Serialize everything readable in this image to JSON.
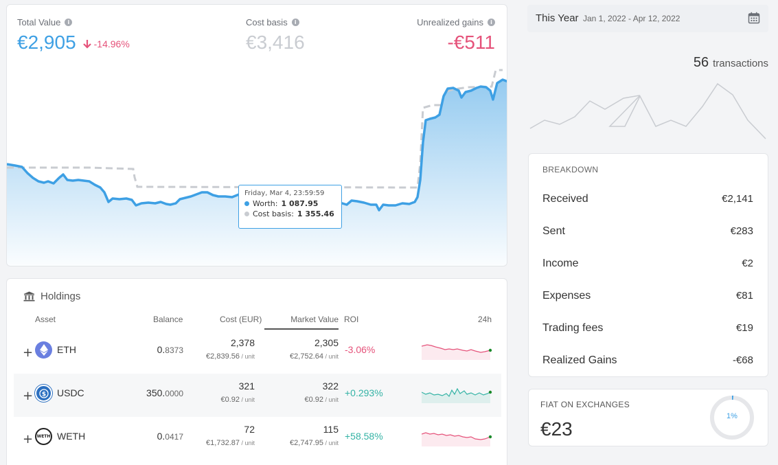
{
  "summary": {
    "total_value_label": "Total Value",
    "total_value": "€2,905",
    "total_change": "-14.96%",
    "cost_basis_label": "Cost basis",
    "cost_basis": "€3,416",
    "unrealized_label": "Unrealized gains",
    "unrealized": "-€511"
  },
  "tooltip": {
    "date": "Friday, Mar 4, 23:59:59",
    "worth_label": "Worth:",
    "worth_value": "1 087.95",
    "cost_label": "Cost basis:",
    "cost_value": "1 355.46"
  },
  "holdings": {
    "title": "Holdings",
    "columns": {
      "asset": "Asset",
      "balance": "Balance",
      "cost": "Cost (EUR)",
      "market": "Market Value",
      "roi": "ROI",
      "h24": "24h"
    },
    "rows": [
      {
        "symbol": "ETH",
        "balance_int": "0.",
        "balance_dec": "8373",
        "cost": "2,378",
        "cost_unit": "€2,839.56",
        "market": "2,305",
        "market_unit": "€2,752.64",
        "unit_suffix": " / unit",
        "roi": "-3.06%"
      },
      {
        "symbol": "USDC",
        "balance_int": "350.",
        "balance_dec": "0000",
        "cost": "321",
        "cost_unit": "€0.92",
        "market": "322",
        "market_unit": "€0.92",
        "unit_suffix": " / unit",
        "roi": "+0.293%"
      },
      {
        "symbol": "WETH",
        "balance_int": "0.",
        "balance_dec": "0417",
        "cost": "72",
        "cost_unit": "€1,732.87",
        "market": "115",
        "market_unit": "€2,747.95",
        "unit_suffix": " / unit",
        "roi": "+58.58%"
      }
    ]
  },
  "date_range": {
    "label": "This Year",
    "dates": "Jan 1, 2022 - Apr 12, 2022"
  },
  "transactions": {
    "count": "56",
    "label": "transactions"
  },
  "breakdown": {
    "title": "BREAKDOWN",
    "items": [
      {
        "label": "Received",
        "value": "€2,141"
      },
      {
        "label": "Sent",
        "value": "€283"
      },
      {
        "label": "Income",
        "value": "€2"
      },
      {
        "label": "Expenses",
        "value": "€81"
      },
      {
        "label": "Trading fees",
        "value": "€19"
      },
      {
        "label": "Realized Gains",
        "value": "-€68"
      }
    ]
  },
  "fiat": {
    "title": "FIAT ON EXCHANGES",
    "value": "€23",
    "percent_label": "1%",
    "percent": 0.01
  },
  "colors": {
    "accent": "#3ea0e4",
    "negative": "#e5527a",
    "positive": "#34b3a5",
    "muted": "#c9ccd1"
  },
  "icons": {
    "info": "info-icon",
    "down_arrow": "arrow-down-icon",
    "bank": "bank-icon",
    "calendar": "calendar-icon",
    "expand": "plus-icon"
  }
}
